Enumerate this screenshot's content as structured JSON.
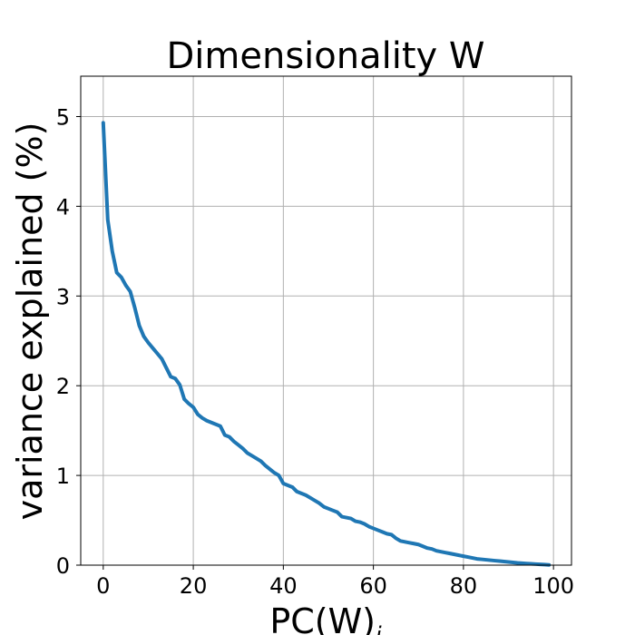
{
  "chart_data": {
    "type": "line",
    "title": "Dimensionality W",
    "xlabel": "PC(W)",
    "xlabel_subscript": "i",
    "ylabel": "variance explained (%)",
    "xlim": [
      -5,
      104
    ],
    "ylim": [
      0,
      5.45
    ],
    "xticks": [
      0,
      20,
      40,
      60,
      80,
      100
    ],
    "yticks": [
      0,
      1,
      2,
      3,
      4,
      5
    ],
    "grid": true,
    "series": [
      {
        "color": "#1f77b4",
        "points": [
          [
            0,
            4.93
          ],
          [
            1,
            3.85
          ],
          [
            2,
            3.5
          ],
          [
            3,
            3.26
          ],
          [
            4,
            3.21
          ],
          [
            5,
            3.12
          ],
          [
            6,
            3.05
          ],
          [
            7,
            2.87
          ],
          [
            8,
            2.67
          ],
          [
            9,
            2.55
          ],
          [
            10,
            2.48
          ],
          [
            11,
            2.42
          ],
          [
            12,
            2.36
          ],
          [
            13,
            2.3
          ],
          [
            14,
            2.2
          ],
          [
            15,
            2.1
          ],
          [
            16,
            2.08
          ],
          [
            17,
            2.01
          ],
          [
            18,
            1.85
          ],
          [
            19,
            1.8
          ],
          [
            20,
            1.76
          ],
          [
            21,
            1.68
          ],
          [
            22,
            1.64
          ],
          [
            23,
            1.61
          ],
          [
            24,
            1.59
          ],
          [
            25,
            1.57
          ],
          [
            26,
            1.55
          ],
          [
            27,
            1.45
          ],
          [
            28,
            1.43
          ],
          [
            29,
            1.38
          ],
          [
            30,
            1.34
          ],
          [
            31,
            1.3
          ],
          [
            32,
            1.25
          ],
          [
            33,
            1.22
          ],
          [
            34,
            1.19
          ],
          [
            35,
            1.16
          ],
          [
            36,
            1.11
          ],
          [
            37,
            1.07
          ],
          [
            38,
            1.03
          ],
          [
            39,
            1.0
          ],
          [
            40,
            0.91
          ],
          [
            41,
            0.89
          ],
          [
            42,
            0.87
          ],
          [
            43,
            0.82
          ],
          [
            44,
            0.8
          ],
          [
            45,
            0.78
          ],
          [
            46,
            0.75
          ],
          [
            47,
            0.72
          ],
          [
            48,
            0.69
          ],
          [
            49,
            0.65
          ],
          [
            50,
            0.63
          ],
          [
            51,
            0.61
          ],
          [
            52,
            0.59
          ],
          [
            53,
            0.54
          ],
          [
            54,
            0.53
          ],
          [
            55,
            0.52
          ],
          [
            56,
            0.49
          ],
          [
            57,
            0.48
          ],
          [
            58,
            0.46
          ],
          [
            59,
            0.43
          ],
          [
            60,
            0.41
          ],
          [
            61,
            0.39
          ],
          [
            62,
            0.37
          ],
          [
            63,
            0.35
          ],
          [
            64,
            0.34
          ],
          [
            65,
            0.3
          ],
          [
            66,
            0.27
          ],
          [
            67,
            0.26
          ],
          [
            68,
            0.25
          ],
          [
            69,
            0.24
          ],
          [
            70,
            0.23
          ],
          [
            71,
            0.21
          ],
          [
            72,
            0.19
          ],
          [
            73,
            0.18
          ],
          [
            74,
            0.16
          ],
          [
            75,
            0.15
          ],
          [
            76,
            0.14
          ],
          [
            77,
            0.13
          ],
          [
            78,
            0.12
          ],
          [
            79,
            0.11
          ],
          [
            80,
            0.1
          ],
          [
            81,
            0.09
          ],
          [
            82,
            0.08
          ],
          [
            83,
            0.07
          ],
          [
            84,
            0.065
          ],
          [
            85,
            0.06
          ],
          [
            86,
            0.055
          ],
          [
            87,
            0.05
          ],
          [
            88,
            0.045
          ],
          [
            89,
            0.04
          ],
          [
            90,
            0.035
          ],
          [
            91,
            0.03
          ],
          [
            92,
            0.025
          ],
          [
            93,
            0.022
          ],
          [
            94,
            0.018
          ],
          [
            95,
            0.015
          ],
          [
            96,
            0.012
          ],
          [
            97,
            0.009
          ],
          [
            98,
            0.006
          ],
          [
            99,
            0.003
          ]
        ]
      }
    ]
  }
}
